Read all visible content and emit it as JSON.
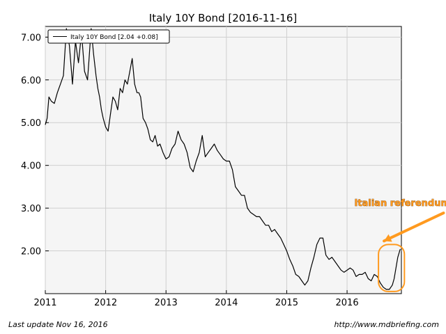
{
  "chart_data": {
    "type": "line",
    "title": "Italy 10Y Bond  [2016-11-16]",
    "legend": {
      "label": "Italy 10Y Bond [2.04 +0.08]",
      "placement": "top-left"
    },
    "xlabel": "",
    "ylabel": "",
    "grid": true,
    "xlim": [
      2011.0,
      2016.9
    ],
    "ylim": [
      1.0,
      7.25
    ],
    "x_ticks": [
      {
        "value": 2011.0,
        "label": "2011"
      },
      {
        "value": 2012.0,
        "label": "2012"
      },
      {
        "value": 2013.0,
        "label": "2013"
      },
      {
        "value": 2014.0,
        "label": "2014"
      },
      {
        "value": 2015.0,
        "label": "2015"
      },
      {
        "value": 2016.0,
        "label": "2016"
      }
    ],
    "y_ticks": [
      {
        "value": 2.0,
        "label": "2.00"
      },
      {
        "value": 3.0,
        "label": "3.00"
      },
      {
        "value": 4.0,
        "label": "4.00"
      },
      {
        "value": 5.0,
        "label": "5.00"
      },
      {
        "value": 6.0,
        "label": "6.00"
      },
      {
        "value": 7.0,
        "label": "7.00"
      }
    ],
    "series": [
      {
        "name": "Italy 10Y Bond [2.04 +0.08]",
        "color": "#000000",
        "x": [
          2011.0,
          2011.03,
          2011.06,
          2011.1,
          2011.15,
          2011.2,
          2011.25,
          2011.3,
          2011.35,
          2011.4,
          2011.45,
          2011.5,
          2011.55,
          2011.6,
          2011.65,
          2011.7,
          2011.72,
          2011.76,
          2011.8,
          2011.84,
          2011.87,
          2011.9,
          2011.93,
          2011.96,
          2012.0,
          2012.04,
          2012.08,
          2012.12,
          2012.16,
          2012.2,
          2012.24,
          2012.28,
          2012.32,
          2012.36,
          2012.4,
          2012.44,
          2012.48,
          2012.52,
          2012.55,
          2012.58,
          2012.62,
          2012.66,
          2012.7,
          2012.74,
          2012.78,
          2012.82,
          2012.86,
          2012.9,
          2012.95,
          2013.0,
          2013.05,
          2013.1,
          2013.15,
          2013.2,
          2013.25,
          2013.3,
          2013.35,
          2013.4,
          2013.45,
          2013.5,
          2013.55,
          2013.6,
          2013.65,
          2013.7,
          2013.75,
          2013.8,
          2013.85,
          2013.9,
          2013.95,
          2014.0,
          2014.05,
          2014.1,
          2014.15,
          2014.2,
          2014.25,
          2014.3,
          2014.35,
          2014.4,
          2014.45,
          2014.5,
          2014.55,
          2014.6,
          2014.65,
          2014.7,
          2014.75,
          2014.8,
          2014.85,
          2014.9,
          2014.95,
          2015.0,
          2015.05,
          2015.1,
          2015.15,
          2015.2,
          2015.25,
          2015.3,
          2015.35,
          2015.4,
          2015.45,
          2015.5,
          2015.55,
          2015.6,
          2015.65,
          2015.7,
          2015.75,
          2015.8,
          2015.85,
          2015.9,
          2015.95,
          2016.0,
          2016.05,
          2016.1,
          2016.15,
          2016.2,
          2016.25,
          2016.3,
          2016.35,
          2016.4,
          2016.45,
          2016.5,
          2016.55,
          2016.6,
          2016.65,
          2016.7,
          2016.75,
          2016.78,
          2016.81,
          2016.84,
          2016.88
        ],
        "values": [
          4.95,
          5.1,
          5.6,
          5.5,
          5.45,
          5.7,
          5.9,
          6.1,
          7.2,
          6.8,
          5.9,
          6.9,
          6.4,
          7.1,
          6.2,
          6.0,
          6.4,
          7.2,
          6.6,
          6.1,
          5.8,
          5.6,
          5.3,
          5.1,
          4.9,
          4.8,
          5.2,
          5.6,
          5.5,
          5.3,
          5.8,
          5.7,
          6.0,
          5.9,
          6.2,
          6.5,
          5.9,
          5.7,
          5.7,
          5.6,
          5.1,
          5.0,
          4.85,
          4.6,
          4.55,
          4.7,
          4.45,
          4.5,
          4.3,
          4.15,
          4.2,
          4.4,
          4.5,
          4.8,
          4.6,
          4.5,
          4.3,
          3.95,
          3.85,
          4.1,
          4.3,
          4.7,
          4.2,
          4.3,
          4.4,
          4.5,
          4.35,
          4.25,
          4.15,
          4.1,
          4.1,
          3.9,
          3.5,
          3.4,
          3.3,
          3.3,
          3.0,
          2.9,
          2.85,
          2.8,
          2.8,
          2.7,
          2.6,
          2.6,
          2.45,
          2.5,
          2.4,
          2.3,
          2.15,
          2.0,
          1.8,
          1.65,
          1.45,
          1.4,
          1.3,
          1.2,
          1.3,
          1.6,
          1.85,
          2.15,
          2.3,
          2.3,
          1.9,
          1.8,
          1.85,
          1.75,
          1.65,
          1.55,
          1.5,
          1.55,
          1.6,
          1.55,
          1.4,
          1.45,
          1.45,
          1.5,
          1.35,
          1.3,
          1.45,
          1.4,
          1.25,
          1.15,
          1.1,
          1.1,
          1.2,
          1.35,
          1.6,
          1.85,
          2.04
        ]
      }
    ],
    "annotations": [
      {
        "text": "Italian referendum concerns",
        "x": 2016.12,
        "y": 3.05,
        "color": "#ff9a1f"
      }
    ],
    "highlight": {
      "x_range": [
        2016.52,
        2016.95
      ],
      "y_range": [
        1.05,
        2.15
      ],
      "color": "#ff9a1f"
    },
    "arrow_color": "#ff9a1f"
  },
  "footer": {
    "last_update": "Last update Nov 16, 2016",
    "source": "http://www.mdbriefing.com"
  }
}
